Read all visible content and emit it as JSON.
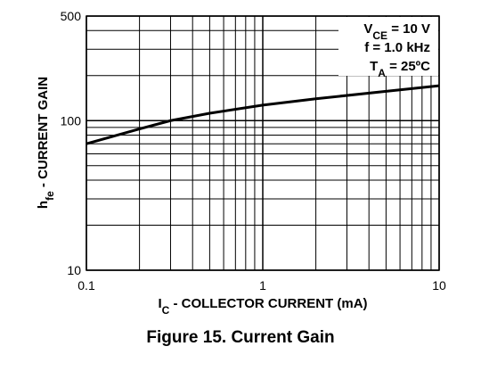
{
  "chart_data": {
    "type": "line",
    "log_x": true,
    "log_y": true,
    "minor_grid": true,
    "xlim": [
      0.1,
      10
    ],
    "xticks": [
      0.1,
      1,
      10
    ],
    "ylim": [
      10,
      500
    ],
    "yticks": [
      10,
      100,
      500
    ],
    "x_label": {
      "main": "I",
      "sub": "C",
      "rest": " - COLLECTOR CURRENT (mA)"
    },
    "y_label": {
      "main": "h",
      "sub": "fe",
      "rest": " - CURRENT GAIN"
    },
    "caption": "Figure 15. Current Gain",
    "annotations": [
      {
        "main": "V",
        "sub": "CE",
        "rest": " = 10 V"
      },
      {
        "main": "f = 1.0 kHz",
        "sub": "",
        "rest": ""
      },
      {
        "main": "T",
        "sub": "A",
        "rest": " = 25ºC"
      }
    ],
    "x": [
      0.1,
      0.2,
      0.3,
      0.5,
      1,
      2,
      5,
      10
    ],
    "series": [
      {
        "color": "#000000",
        "values": [
          70,
          88,
          100,
          112,
          127,
          140,
          157,
          171
        ]
      }
    ]
  }
}
